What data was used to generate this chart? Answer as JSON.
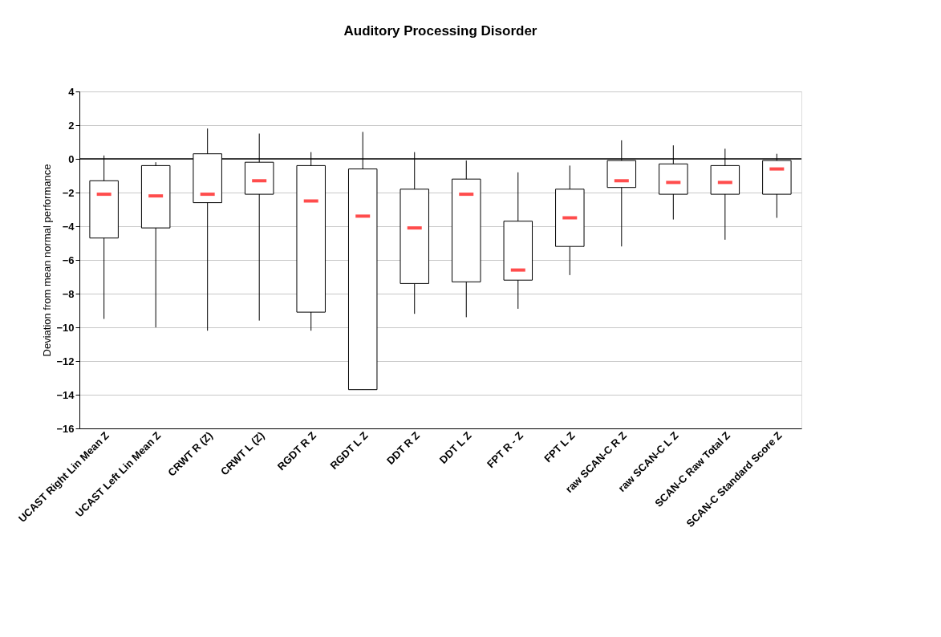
{
  "chart_data": {
    "type": "box",
    "title": "Auditory Processing Disorder",
    "ylabel": "Deviation from mean normal performance",
    "categories": [
      "UCAST Right Lin Mean Z",
      "UCAST Left Lin Mean Z",
      "CRWT R (Z)",
      "CRWT L (Z)",
      "RGDT R Z",
      "RGDT L Z",
      "DDT R Z",
      "DDT L Z",
      "FPT R - Z",
      "FPT L Z",
      "raw SCAN-C R Z",
      "raw SCAN-C L Z",
      "SCAN-C Raw Total Z",
      "SCAN-C Standard Score Z"
    ],
    "boxes": [
      {
        "low": -9.5,
        "q1": -4.7,
        "median": -2.1,
        "q3": -1.3,
        "high": 0.2
      },
      {
        "low": -10.0,
        "q1": -4.1,
        "median": -2.2,
        "q3": -0.4,
        "high": -0.2
      },
      {
        "low": -10.2,
        "q1": -2.6,
        "median": -2.1,
        "q3": 0.3,
        "high": 1.8
      },
      {
        "low": -9.6,
        "q1": -2.1,
        "median": -1.3,
        "q3": -0.2,
        "high": 1.5
      },
      {
        "low": -10.2,
        "q1": -9.1,
        "median": -2.5,
        "q3": -0.4,
        "high": 0.4
      },
      {
        "low": -13.7,
        "q1": -13.7,
        "median": -3.4,
        "q3": -0.6,
        "high": 1.6
      },
      {
        "low": -9.2,
        "q1": -7.4,
        "median": -4.1,
        "q3": -1.8,
        "high": 0.4
      },
      {
        "low": -9.4,
        "q1": -7.3,
        "median": -2.1,
        "q3": -1.2,
        "high": -0.1
      },
      {
        "low": -8.9,
        "q1": -7.2,
        "median": -6.6,
        "q3": -3.7,
        "high": -0.8
      },
      {
        "low": -6.9,
        "q1": -5.2,
        "median": -3.5,
        "q3": -1.8,
        "high": -0.4
      },
      {
        "low": -5.2,
        "q1": -1.7,
        "median": -1.3,
        "q3": -0.1,
        "high": 1.1
      },
      {
        "low": -3.6,
        "q1": -2.1,
        "median": -1.4,
        "q3": -0.3,
        "high": 0.8
      },
      {
        "low": -4.8,
        "q1": -2.1,
        "median": -1.4,
        "q3": -0.4,
        "high": 0.6
      },
      {
        "low": -3.5,
        "q1": -2.1,
        "median": -0.6,
        "q3": -0.1,
        "high": 0.3
      }
    ],
    "color": "#ffffff",
    "ylim": [
      -16,
      4
    ],
    "yticks": [
      -16,
      -14,
      -12,
      -10,
      -8,
      -6,
      -4,
      -2,
      0,
      2,
      4
    ],
    "grid": "y",
    "ref_lines": [
      {
        "axis": "y",
        "value": 0,
        "color": "#000000"
      }
    ]
  }
}
